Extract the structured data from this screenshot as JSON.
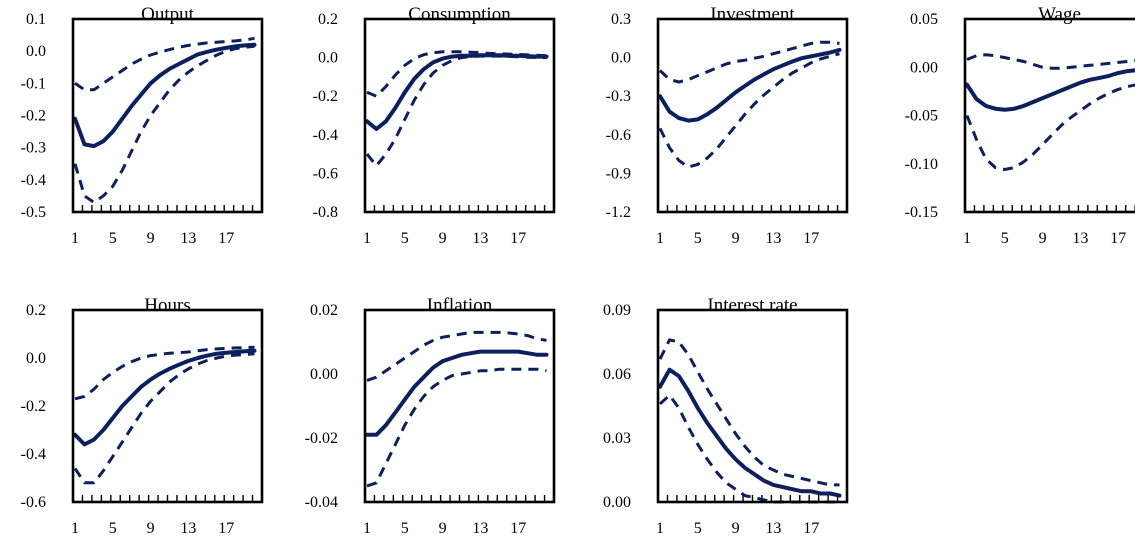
{
  "chart_data": [
    {
      "type": "line",
      "title": "Output",
      "x": [
        1,
        2,
        3,
        4,
        5,
        6,
        7,
        8,
        9,
        10,
        11,
        12,
        13,
        14,
        15,
        16,
        17,
        18,
        19,
        20
      ],
      "ylim": [
        -0.5,
        0.1
      ],
      "yticks": [
        "0.1",
        "0.0",
        "-0.1",
        "-0.2",
        "-0.3",
        "-0.4",
        "-0.5"
      ],
      "xticks": [
        "1",
        "5",
        "9",
        "13",
        "17"
      ],
      "series": [
        {
          "role": "central",
          "values": [
            -0.21,
            -0.29,
            -0.295,
            -0.28,
            -0.25,
            -0.21,
            -0.17,
            -0.135,
            -0.1,
            -0.075,
            -0.055,
            -0.04,
            -0.025,
            -0.01,
            -0.002,
            0.005,
            0.01,
            0.015,
            0.018,
            0.02
          ]
        },
        {
          "role": "upper",
          "values": [
            -0.1,
            -0.12,
            -0.12,
            -0.1,
            -0.08,
            -0.06,
            -0.04,
            -0.025,
            -0.012,
            -0.003,
            0.005,
            0.012,
            0.018,
            0.022,
            0.026,
            0.028,
            0.03,
            0.032,
            0.035,
            0.04
          ]
        },
        {
          "role": "lower",
          "values": [
            -0.35,
            -0.45,
            -0.47,
            -0.45,
            -0.42,
            -0.37,
            -0.31,
            -0.25,
            -0.2,
            -0.16,
            -0.12,
            -0.09,
            -0.065,
            -0.045,
            -0.028,
            -0.012,
            0.0,
            0.008,
            0.012,
            0.015
          ]
        }
      ]
    },
    {
      "type": "line",
      "title": "Consumption",
      "x": [
        1,
        2,
        3,
        4,
        5,
        6,
        7,
        8,
        9,
        10,
        11,
        12,
        13,
        14,
        15,
        16,
        17,
        18,
        19,
        20
      ],
      "ylim": [
        -0.8,
        0.2
      ],
      "yticks": [
        "0.2",
        "0.0",
        "-0.2",
        "-0.4",
        "-0.6",
        "-0.8"
      ],
      "xticks": [
        "1",
        "5",
        "9",
        "13",
        "17"
      ],
      "series": [
        {
          "role": "central",
          "values": [
            -0.33,
            -0.37,
            -0.33,
            -0.26,
            -0.18,
            -0.11,
            -0.06,
            -0.025,
            -0.005,
            0.005,
            0.01,
            0.01,
            0.012,
            0.012,
            0.012,
            0.01,
            0.01,
            0.008,
            0.005,
            0.005
          ]
        },
        {
          "role": "upper",
          "values": [
            -0.18,
            -0.2,
            -0.15,
            -0.09,
            -0.04,
            -0.005,
            0.015,
            0.025,
            0.03,
            0.03,
            0.03,
            0.028,
            0.025,
            0.022,
            0.02,
            0.018,
            0.016,
            0.014,
            0.012,
            0.01
          ]
        },
        {
          "role": "lower",
          "values": [
            -0.5,
            -0.56,
            -0.5,
            -0.42,
            -0.32,
            -0.22,
            -0.14,
            -0.08,
            -0.04,
            -0.015,
            0.0,
            0.005,
            0.008,
            0.008,
            0.008,
            0.006,
            0.004,
            0.002,
            0.0,
            0.0
          ]
        }
      ]
    },
    {
      "type": "line",
      "title": "Investment",
      "x": [
        1,
        2,
        3,
        4,
        5,
        6,
        7,
        8,
        9,
        10,
        11,
        12,
        13,
        14,
        15,
        16,
        17,
        18,
        19,
        20
      ],
      "ylim": [
        -1.2,
        0.3
      ],
      "yticks": [
        "0.3",
        "0.0",
        "-0.3",
        "-0.6",
        "-0.9",
        "-1.2"
      ],
      "xticks": [
        "1",
        "5",
        "9",
        "13",
        "17"
      ],
      "series": [
        {
          "role": "central",
          "values": [
            -0.3,
            -0.42,
            -0.47,
            -0.49,
            -0.48,
            -0.44,
            -0.39,
            -0.33,
            -0.27,
            -0.22,
            -0.17,
            -0.13,
            -0.09,
            -0.06,
            -0.03,
            -0.005,
            0.01,
            0.025,
            0.04,
            0.06
          ]
        },
        {
          "role": "upper",
          "values": [
            -0.1,
            -0.17,
            -0.19,
            -0.17,
            -0.14,
            -0.11,
            -0.08,
            -0.05,
            -0.03,
            -0.02,
            -0.005,
            0.01,
            0.03,
            0.05,
            0.07,
            0.09,
            0.11,
            0.12,
            0.12,
            0.11
          ]
        },
        {
          "role": "lower",
          "values": [
            -0.55,
            -0.7,
            -0.8,
            -0.85,
            -0.83,
            -0.78,
            -0.71,
            -0.62,
            -0.53,
            -0.44,
            -0.36,
            -0.29,
            -0.23,
            -0.17,
            -0.12,
            -0.08,
            -0.04,
            -0.01,
            0.01,
            0.03
          ]
        }
      ]
    },
    {
      "type": "line",
      "title": "Wage",
      "x": [
        1,
        2,
        3,
        4,
        5,
        6,
        7,
        8,
        9,
        10,
        11,
        12,
        13,
        14,
        15,
        16,
        17,
        18,
        19,
        20
      ],
      "ylim": [
        -0.15,
        0.05
      ],
      "yticks": [
        "0.05",
        "0.00",
        "-0.05",
        "-0.10",
        "-0.15"
      ],
      "xticks": [
        "1",
        "5",
        "9",
        "13",
        "17"
      ],
      "series": [
        {
          "role": "central",
          "values": [
            -0.018,
            -0.033,
            -0.04,
            -0.043,
            -0.044,
            -0.043,
            -0.04,
            -0.036,
            -0.032,
            -0.028,
            -0.024,
            -0.02,
            -0.016,
            -0.013,
            -0.011,
            -0.009,
            -0.006,
            -0.004,
            -0.003,
            -0.002
          ]
        },
        {
          "role": "upper",
          "values": [
            0.008,
            0.012,
            0.013,
            0.012,
            0.01,
            0.008,
            0.006,
            0.003,
            0.0,
            -0.001,
            -0.001,
            0.0,
            0.001,
            0.002,
            0.003,
            0.004,
            0.005,
            0.006,
            0.007,
            0.008
          ]
        },
        {
          "role": "lower",
          "values": [
            -0.05,
            -0.075,
            -0.095,
            -0.104,
            -0.106,
            -0.104,
            -0.098,
            -0.09,
            -0.08,
            -0.07,
            -0.06,
            -0.052,
            -0.045,
            -0.038,
            -0.032,
            -0.027,
            -0.023,
            -0.02,
            -0.018,
            -0.017
          ]
        }
      ]
    },
    {
      "type": "line",
      "title": "Hours",
      "x": [
        1,
        2,
        3,
        4,
        5,
        6,
        7,
        8,
        9,
        10,
        11,
        12,
        13,
        14,
        15,
        16,
        17,
        18,
        19,
        20
      ],
      "ylim": [
        -0.6,
        0.2
      ],
      "yticks": [
        "0.2",
        "0.0",
        "-0.2",
        "-0.4",
        "-0.6"
      ],
      "xticks": [
        "1",
        "5",
        "9",
        "13",
        "17"
      ],
      "series": [
        {
          "role": "central",
          "values": [
            -0.32,
            -0.36,
            -0.34,
            -0.3,
            -0.25,
            -0.2,
            -0.16,
            -0.12,
            -0.09,
            -0.065,
            -0.045,
            -0.028,
            -0.012,
            0.0,
            0.01,
            0.018,
            0.022,
            0.025,
            0.028,
            0.03
          ]
        },
        {
          "role": "upper",
          "values": [
            -0.17,
            -0.16,
            -0.13,
            -0.09,
            -0.06,
            -0.035,
            -0.015,
            0.0,
            0.01,
            0.015,
            0.02,
            0.022,
            0.025,
            0.03,
            0.035,
            0.038,
            0.04,
            0.042,
            0.043,
            0.045
          ]
        },
        {
          "role": "lower",
          "values": [
            -0.46,
            -0.52,
            -0.52,
            -0.47,
            -0.41,
            -0.35,
            -0.29,
            -0.23,
            -0.18,
            -0.14,
            -0.1,
            -0.07,
            -0.045,
            -0.025,
            -0.01,
            0.0,
            0.008,
            0.012,
            0.015,
            0.018
          ]
        }
      ]
    },
    {
      "type": "line",
      "title": "Inflation",
      "x": [
        1,
        2,
        3,
        4,
        5,
        6,
        7,
        8,
        9,
        10,
        11,
        12,
        13,
        14,
        15,
        16,
        17,
        18,
        19,
        20
      ],
      "ylim": [
        -0.04,
        0.02
      ],
      "yticks": [
        "0.02",
        "0.00",
        "-0.02",
        "-0.04"
      ],
      "xticks": [
        "1",
        "5",
        "9",
        "13",
        "17"
      ],
      "series": [
        {
          "role": "central",
          "values": [
            -0.019,
            -0.019,
            -0.016,
            -0.012,
            -0.008,
            -0.004,
            -0.001,
            0.002,
            0.004,
            0.005,
            0.006,
            0.0065,
            0.007,
            0.007,
            0.007,
            0.007,
            0.007,
            0.0065,
            0.006,
            0.006
          ]
        },
        {
          "role": "upper",
          "values": [
            -0.002,
            -0.001,
            0.001,
            0.003,
            0.005,
            0.007,
            0.009,
            0.0105,
            0.0115,
            0.012,
            0.0125,
            0.013,
            0.013,
            0.013,
            0.013,
            0.0128,
            0.0125,
            0.012,
            0.011,
            0.0105
          ]
        },
        {
          "role": "lower",
          "values": [
            -0.035,
            -0.034,
            -0.028,
            -0.022,
            -0.016,
            -0.011,
            -0.007,
            -0.004,
            -0.002,
            -0.0005,
            0.0,
            0.0005,
            0.001,
            0.001,
            0.0015,
            0.0015,
            0.0015,
            0.0015,
            0.0015,
            0.001
          ]
        }
      ]
    },
    {
      "type": "line",
      "title": "Interest rate",
      "x": [
        1,
        2,
        3,
        4,
        5,
        6,
        7,
        8,
        9,
        10,
        11,
        12,
        13,
        14,
        15,
        16,
        17,
        18,
        19,
        20
      ],
      "ylim": [
        0.0,
        0.09
      ],
      "yticks": [
        "0.09",
        "0.06",
        "0.03",
        "0.00"
      ],
      "xticks": [
        "1",
        "5",
        "9",
        "13",
        "17"
      ],
      "series": [
        {
          "role": "central",
          "values": [
            0.054,
            0.062,
            0.059,
            0.052,
            0.044,
            0.037,
            0.031,
            0.025,
            0.02,
            0.016,
            0.013,
            0.01,
            0.008,
            0.007,
            0.006,
            0.005,
            0.005,
            0.004,
            0.004,
            0.003
          ]
        },
        {
          "role": "upper",
          "values": [
            0.067,
            0.076,
            0.075,
            0.069,
            0.061,
            0.053,
            0.046,
            0.039,
            0.032,
            0.026,
            0.021,
            0.017,
            0.015,
            0.013,
            0.012,
            0.011,
            0.01,
            0.009,
            0.008,
            0.008
          ]
        },
        {
          "role": "lower",
          "values": [
            0.046,
            0.05,
            0.044,
            0.035,
            0.027,
            0.02,
            0.014,
            0.009,
            0.006,
            0.003,
            0.002,
            0.001,
            0.0,
            0.0,
            0.0,
            0.0,
            0.0,
            0.0,
            0.0,
            0.0
          ]
        }
      ]
    }
  ]
}
